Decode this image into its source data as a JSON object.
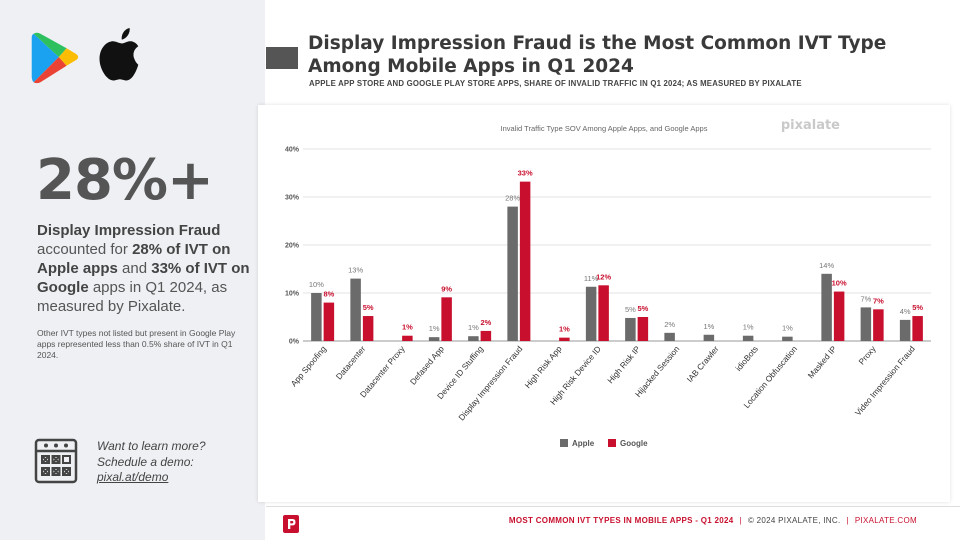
{
  "sidebar": {
    "stat": "28%+",
    "desc_parts": [
      "Display Impression Fraud",
      " accounted for ",
      "28% of IVT on Apple apps",
      " and ",
      "33% of IVT on Google",
      " apps in Q1 2024, as measured by Pixalate."
    ],
    "note": "Other IVT types not listed but present in Google Play apps represented less than 0.5% share of IVT in Q1 2024.",
    "learn_line1": "Want to learn more?",
    "learn_line2": "Schedule a demo:",
    "learn_link": "pixal.at/demo"
  },
  "header": {
    "title": "Display Impression Fraud is the Most Common IVT Type Among Mobile Apps in Q1 2024",
    "subtitle": "APPLE APP STORE AND GOOGLE PLAY STORE APPS, SHARE OF INVALID TRAFFIC IN Q1 2024; AS MEASURED BY PIXALATE"
  },
  "footer": {
    "title": "MOST COMMON IVT TYPES IN MOBILE APPS - Q1 2024",
    "copyright": "© 2024 PIXALATE, INC.",
    "site": "PIXALATE.COM"
  },
  "colors": {
    "apple": "#6b6b6b",
    "google": "#c8102e"
  },
  "chart_data": {
    "type": "bar",
    "title": "Invalid Traffic Type SOV Among Apple Apps, and Google Apps",
    "watermark": "pixalate",
    "ylim": [
      0,
      40
    ],
    "yticks": [
      "0%",
      "10%",
      "20%",
      "30%",
      "40%"
    ],
    "legend_position": "bottom",
    "categories": [
      "App Spoofing",
      "Datacenter",
      "Datacenter Proxy",
      "Defased App",
      "Device ID Stuffing",
      "Display Impression Fraud",
      "High Risk App",
      "High Risk Device ID",
      "High Risk IP",
      "Hijacked Session",
      "IAB Crawler",
      "idioBots",
      "Location Obfuscation",
      "Masked IP",
      "Proxy",
      "Video Impression Fraud"
    ],
    "series": [
      {
        "name": "Apple",
        "values": [
          10,
          13,
          0,
          0.8,
          1,
          28,
          0,
          11.3,
          4.8,
          1.7,
          1.3,
          1.1,
          0.9,
          14,
          7,
          4.4
        ],
        "labels": [
          "10%",
          "13%",
          "",
          "1%",
          "1%",
          "28%",
          "",
          "11%",
          "5%",
          "2%",
          "1%",
          "1%",
          "1%",
          "14%",
          "7%",
          "4%"
        ]
      },
      {
        "name": "Google",
        "values": [
          8,
          5.2,
          1.1,
          9.1,
          2.1,
          33.2,
          0.7,
          11.6,
          5,
          0,
          0,
          0,
          0,
          10.3,
          6.6,
          5.2
        ],
        "labels": [
          "8%",
          "5%",
          "1%",
          "9%",
          "2%",
          "33%",
          "1%",
          "12%",
          "5%",
          "",
          "",
          "",
          "",
          "10%",
          "7%",
          "5%"
        ]
      }
    ]
  }
}
